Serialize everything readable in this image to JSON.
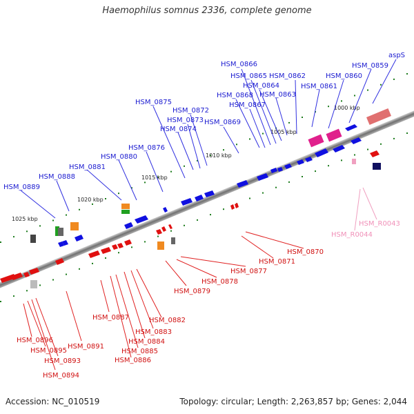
{
  "title": "Haemophilus somnus 2336, complete genome",
  "footer": {
    "accession": "Accession: NC_010519",
    "summary": "Topology: circular; Length: 2,263,857 bp; Genes: 2,044"
  },
  "colors": {
    "forward": "#1010e0",
    "reverse": "#e01010",
    "rna": "#f0a0c0",
    "backbone": "#808080",
    "tick": "#2a8a2a"
  },
  "scale_labels": [
    "1000 kbp",
    "1005 kbp",
    "1010 kbp",
    "1015 kbp",
    "1020 kbp",
    "1025 kbp"
  ],
  "forward_labels": [
    "aspS",
    "HSM_0859",
    "HSM_0860",
    "HSM_0861",
    "HSM_0862",
    "HSM_0863",
    "HSM_0864",
    "HSM_0865",
    "HSM_0866",
    "HSM_0867",
    "HSM_0868",
    "HSM_0869",
    "HSM_0872",
    "HSM_0873",
    "HSM_0874",
    "HSM_0875",
    "HSM_0876",
    "HSM_0880",
    "HSM_0881",
    "HSM_0888",
    "HSM_0889"
  ],
  "reverse_labels": [
    "HSM_0870",
    "HSM_0871",
    "HSM_0877",
    "HSM_0878",
    "HSM_0879",
    "HSM_0882",
    "HSM_0883",
    "HSM_0884",
    "HSM_0885",
    "HSM_0886",
    "HSM_0887",
    "HSM_0891",
    "HSM_0893",
    "HSM_0894",
    "HSM_0895",
    "HSM_0896"
  ],
  "rna_labels": [
    "HSM_R0043",
    "HSM_R0044"
  ]
}
